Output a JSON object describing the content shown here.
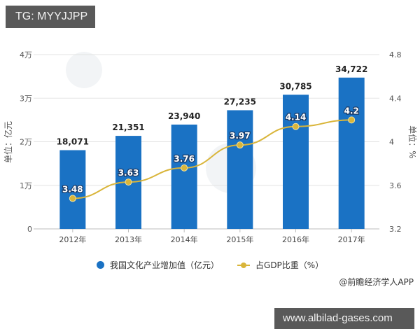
{
  "overlay": {
    "top_tag": "TG: MYYJJPP",
    "bottom_tag": "www.albilad-gases.com"
  },
  "chart_data": {
    "type": "bar+line",
    "categories": [
      "2012年",
      "2013年",
      "2014年",
      "2015年",
      "2016年",
      "2017年"
    ],
    "series": [
      {
        "name": "我国文化产业增加值（亿元）",
        "type": "bar",
        "axis": "left",
        "color": "#1a72c4",
        "values": [
          18071,
          21351,
          23940,
          27235,
          30785,
          34722
        ],
        "labels": [
          "18,071",
          "21,351",
          "23,940",
          "27,235",
          "30,785",
          "34,722"
        ]
      },
      {
        "name": "占GDP比重（%）",
        "type": "line",
        "axis": "right",
        "color": "#d9b53a",
        "values": [
          3.48,
          3.63,
          3.76,
          3.97,
          4.14,
          4.2
        ],
        "labels": [
          "3.48",
          "3.63",
          "3.76",
          "3.97",
          "4.14",
          "4.2"
        ]
      }
    ],
    "left_axis": {
      "label": "单位：亿元",
      "ticks": [
        "0",
        "1万",
        "2万",
        "3万",
        "4万"
      ],
      "range": [
        0,
        40000
      ]
    },
    "right_axis": {
      "label": "单位：%",
      "ticks": [
        "3.2",
        "3.6",
        "4",
        "4.4",
        "4.8"
      ],
      "range": [
        3.2,
        4.8
      ]
    },
    "grid": true,
    "legend_position": "bottom",
    "source": "@前瞻经济学人APP"
  },
  "legend": {
    "bar_label": "我国文化产业增加值（亿元）",
    "line_label": "占GDP比重（%）"
  },
  "source": "@前瞻经济学人APP"
}
